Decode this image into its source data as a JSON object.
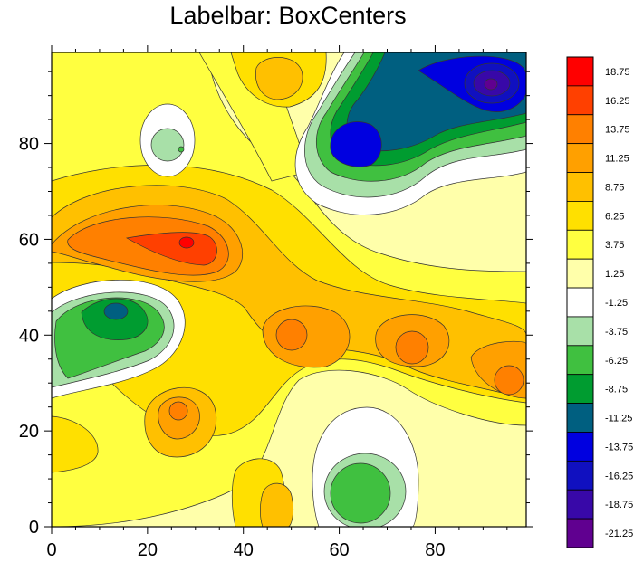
{
  "title": "Labelbar: BoxCenters",
  "chart_data": {
    "type": "filled-contour",
    "title": "Labelbar: BoxCenters",
    "xlim": [
      0,
      99
    ],
    "ylim": [
      0,
      99
    ],
    "x_ticks": [
      0,
      20,
      40,
      60,
      80
    ],
    "y_ticks": [
      0,
      20,
      40,
      60,
      80
    ],
    "colorbar": {
      "labels": [
        "18.75",
        "16.25",
        "13.75",
        "11.25",
        "8.75",
        "6.25",
        "3.75",
        "1.25",
        "-1.25",
        "-3.75",
        "-6.25",
        "-8.75",
        "-11.25",
        "-13.75",
        "-16.25",
        "-18.75",
        "-21.25"
      ],
      "colors": [
        "#ff0000",
        "#ff4000",
        "#ff8000",
        "#ffa000",
        "#ffc000",
        "#ffe000",
        "#ffff40",
        "#ffffaa",
        "#ffffff",
        "#a8e0a8",
        "#40c040",
        "#009c30",
        "#005f80",
        "#0000e0",
        "#1010c0",
        "#3808a8",
        "#600090"
      ]
    },
    "features": [
      {
        "kind": "low",
        "x": 92,
        "y": 92,
        "value": -21.25
      },
      {
        "kind": "low",
        "x": 63,
        "y": 80,
        "value": -13.75
      },
      {
        "kind": "low",
        "x": 13,
        "y": 45,
        "value": -11.25
      },
      {
        "kind": "low",
        "x": 64,
        "y": 8,
        "value": -6.25
      },
      {
        "kind": "low",
        "x": 28,
        "y": 78,
        "value": -3.75
      },
      {
        "kind": "high",
        "x": 28,
        "y": 59,
        "value": 18.75
      },
      {
        "kind": "high",
        "x": 50,
        "y": 40,
        "value": 11.25
      },
      {
        "kind": "high",
        "x": 75,
        "y": 37,
        "value": 11.25
      },
      {
        "kind": "high",
        "x": 96,
        "y": 31,
        "value": 11.25
      },
      {
        "kind": "high",
        "x": 27,
        "y": 24,
        "value": 11.25
      },
      {
        "kind": "high",
        "x": 47,
        "y": 94,
        "value": 8.75
      },
      {
        "kind": "high",
        "x": 47,
        "y": 4,
        "value": 11.25
      },
      {
        "kind": "high",
        "x": 2,
        "y": 14,
        "value": 8.75
      }
    ]
  }
}
